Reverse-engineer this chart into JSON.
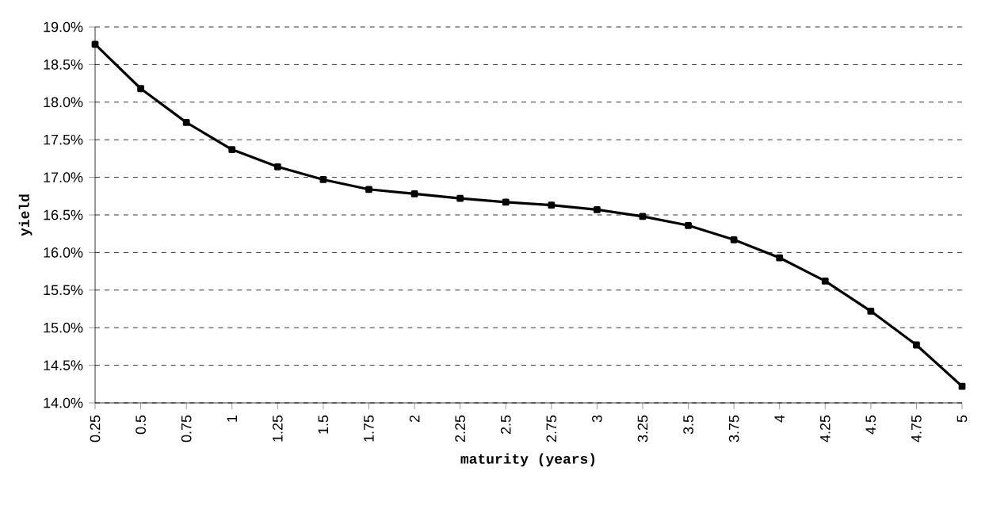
{
  "chart_data": {
    "type": "line",
    "xlabel": "maturity (years)",
    "ylabel": "yield",
    "categories": [
      "0.25",
      "0.5",
      "0.75",
      "1",
      "1.25",
      "1.5",
      "1.75",
      "2",
      "2.25",
      "2.5",
      "2.75",
      "3",
      "3.25",
      "3.5",
      "3.75",
      "4",
      "4.25",
      "4.5",
      "4.75",
      "5"
    ],
    "series": [
      {
        "color": "#000000",
        "values": [
          18.77,
          18.18,
          17.73,
          17.37,
          17.14,
          16.97,
          16.84,
          16.78,
          16.72,
          16.67,
          16.63,
          16.57,
          16.48,
          16.36,
          16.17,
          15.93,
          15.62,
          15.22,
          14.77,
          14.22
        ]
      }
    ],
    "ylim": [
      14,
      19
    ],
    "yticks": [
      {
        "value": 14,
        "label": "14.0%"
      },
      {
        "value": 14.5,
        "label": "14.5%"
      },
      {
        "value": 15,
        "label": "15.0%"
      },
      {
        "value": 15.5,
        "label": "15.5%"
      },
      {
        "value": 16,
        "label": "16.0%"
      },
      {
        "value": 16.5,
        "label": "16.5%"
      },
      {
        "value": 17,
        "label": "17.0%"
      },
      {
        "value": 17.5,
        "label": "17.5%"
      },
      {
        "value": 18,
        "label": "18.0%"
      },
      {
        "value": 18.5,
        "label": "18.5%"
      },
      {
        "value": 19,
        "label": "19.0%"
      }
    ],
    "grid": "y",
    "marker": "square",
    "line_style": "solid"
  }
}
